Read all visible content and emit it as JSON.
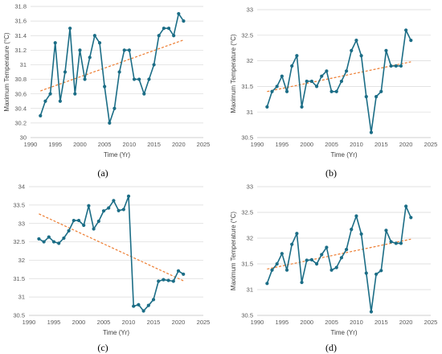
{
  "figure": {
    "series_color": "#1b6d86",
    "trend_color": "#ed7d31",
    "gridline_color": "#d9d9d9",
    "axis_color": "#bfbfbf"
  },
  "chart_data": [
    {
      "type": "line",
      "panel_label": "(a)",
      "xlabel": "Time (Yr)",
      "ylabel": "Maximum Temperature (°C)",
      "xlim": [
        1990,
        2025
      ],
      "ylim": [
        30,
        31.8
      ],
      "xticks": [
        1990,
        1995,
        2000,
        2005,
        2010,
        2015,
        2020,
        2025
      ],
      "yticks": [
        "30",
        "30.2",
        "30.4",
        "30.6",
        "30.8",
        "31",
        "31.2",
        "31.4",
        "31.6",
        "31.8"
      ],
      "grid": "horizontal",
      "x": [
        1992,
        1993,
        1994,
        1995,
        1996,
        1997,
        1998,
        1999,
        2000,
        2001,
        2002,
        2003,
        2004,
        2005,
        2006,
        2007,
        2008,
        2009,
        2010,
        2011,
        2012,
        2013,
        2014,
        2015,
        2016,
        2017,
        2018,
        2019,
        2020,
        2021
      ],
      "y": [
        30.3,
        30.5,
        30.6,
        31.3,
        30.5,
        30.9,
        31.5,
        30.6,
        31.2,
        30.8,
        31.1,
        31.4,
        31.3,
        30.7,
        30.2,
        30.4,
        30.9,
        31.2,
        31.2,
        30.8,
        30.8,
        30.6,
        30.8,
        31.0,
        31.4,
        31.5,
        31.5,
        31.4,
        31.7,
        31.6
      ],
      "trend": [
        [
          1992,
          30.64
        ],
        [
          2021,
          31.34
        ]
      ]
    },
    {
      "type": "line",
      "panel_label": "(b)",
      "xlabel": "Time (Yr)",
      "ylabel": "Maximum Temperature (°C)",
      "xlim": [
        1990,
        2025
      ],
      "ylim": [
        30.5,
        33
      ],
      "xticks": [
        1990,
        1995,
        2000,
        2005,
        2010,
        2015,
        2020,
        2025
      ],
      "yticks": [
        "30.5",
        "31",
        "31.5",
        "32",
        "32.5",
        "33"
      ],
      "grid": "horizontal",
      "x": [
        1992,
        1993,
        1994,
        1995,
        1996,
        1997,
        1998,
        1999,
        2000,
        2001,
        2002,
        2003,
        2004,
        2005,
        2006,
        2007,
        2008,
        2009,
        2010,
        2011,
        2012,
        2013,
        2014,
        2015,
        2016,
        2017,
        2018,
        2019,
        2020,
        2021
      ],
      "y": [
        31.1,
        31.4,
        31.5,
        31.7,
        31.4,
        31.9,
        32.1,
        31.1,
        31.6,
        31.6,
        31.5,
        31.7,
        31.8,
        31.4,
        31.4,
        31.6,
        31.8,
        32.2,
        32.4,
        32.1,
        31.3,
        30.6,
        31.3,
        31.4,
        32.2,
        31.9,
        31.9,
        31.9,
        32.6,
        32.4
      ],
      "trend": [
        [
          1992,
          31.4
        ],
        [
          2021,
          31.98
        ]
      ]
    },
    {
      "type": "line",
      "panel_label": "(c)",
      "xlabel": "Time (Yr)",
      "ylabel": "",
      "xlim": [
        1990,
        2025
      ],
      "ylim": [
        30.5,
        34
      ],
      "xticks": [
        1990,
        1995,
        2000,
        2005,
        2010,
        2015,
        2020,
        2025
      ],
      "yticks": [
        "30.5",
        "31",
        "31.5",
        "32",
        "32.5",
        "33",
        "33.5",
        "34"
      ],
      "grid": "horizontal",
      "x": [
        1992,
        1993,
        1994,
        1995,
        1996,
        1997,
        1998,
        1999,
        2000,
        2001,
        2002,
        2003,
        2004,
        2005,
        2006,
        2007,
        2008,
        2009,
        2010,
        2011,
        2012,
        2013,
        2014,
        2015,
        2016,
        2017,
        2018,
        2019,
        2020,
        2021
      ],
      "y": [
        32.58,
        32.5,
        32.63,
        32.5,
        32.46,
        32.6,
        32.8,
        33.08,
        33.08,
        32.95,
        33.48,
        32.85,
        33.06,
        33.34,
        33.42,
        33.62,
        33.35,
        33.38,
        33.74,
        30.75,
        30.79,
        30.62,
        30.77,
        30.93,
        31.43,
        31.47,
        31.45,
        31.43,
        31.71,
        31.62
      ],
      "trend": [
        [
          1992,
          33.26
        ],
        [
          2021,
          31.44
        ]
      ]
    },
    {
      "type": "line",
      "panel_label": "(d)",
      "xlabel": "Time (Yr)",
      "ylabel": "Maximum Temperature (°C)",
      "xlim": [
        1990,
        2025
      ],
      "ylim": [
        30.5,
        33
      ],
      "xticks": [
        1990,
        1995,
        2000,
        2005,
        2010,
        2015,
        2020,
        2025
      ],
      "yticks": [
        "30.5",
        "31",
        "31.5",
        "32",
        "32.5",
        "33"
      ],
      "grid": "horizontal",
      "x": [
        1992,
        1993,
        1994,
        1995,
        1996,
        1997,
        1998,
        1999,
        2000,
        2001,
        2002,
        2003,
        2004,
        2005,
        2006,
        2007,
        2008,
        2009,
        2010,
        2011,
        2012,
        2013,
        2014,
        2015,
        2016,
        2017,
        2018,
        2019,
        2020,
        2021
      ],
      "y": [
        31.12,
        31.38,
        31.5,
        31.7,
        31.38,
        31.88,
        32.09,
        31.14,
        31.57,
        31.58,
        31.5,
        31.68,
        31.82,
        31.38,
        31.43,
        31.62,
        31.78,
        32.17,
        32.43,
        32.08,
        31.32,
        30.57,
        31.3,
        31.37,
        32.15,
        31.93,
        31.9,
        31.9,
        32.62,
        32.4
      ],
      "trend": [
        [
          1992,
          31.4
        ],
        [
          2021,
          31.98
        ]
      ]
    }
  ]
}
